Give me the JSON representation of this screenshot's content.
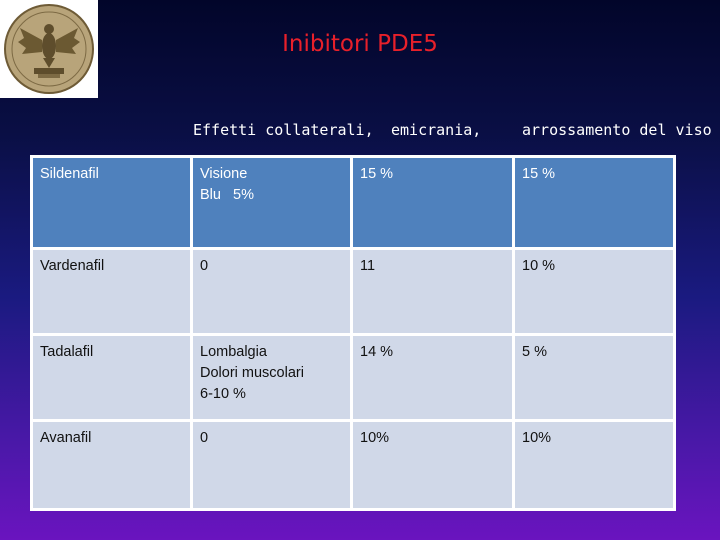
{
  "title": "Inibitori PDE5",
  "logo": {
    "name": "eagle-seal-logo"
  },
  "header": [
    "Effetti collaterali,",
    "emicrania,",
    "arrossamento del viso"
  ],
  "rows": [
    {
      "drug": "Sildenafil",
      "effect": [
        "Visione",
        "Blu   5%"
      ],
      "headache": "15 %",
      "flush": "15 %"
    },
    {
      "drug": "Vardenafil",
      "effect": [
        "0"
      ],
      "headache": "11",
      "flush": "10 %"
    },
    {
      "drug": "Tadalafil",
      "effect": [
        "Lombalgia",
        "Dolori muscolari",
        "6-10 %"
      ],
      "headache": "14 %",
      "flush": "5 %"
    },
    {
      "drug": "Avanafil",
      "effect": [
        "0"
      ],
      "headache": "10%",
      "flush": "10%"
    }
  ],
  "colors": {
    "header_row": "#4f81bd",
    "alt_row": "#d0d8e8",
    "title": "#e8202a"
  }
}
